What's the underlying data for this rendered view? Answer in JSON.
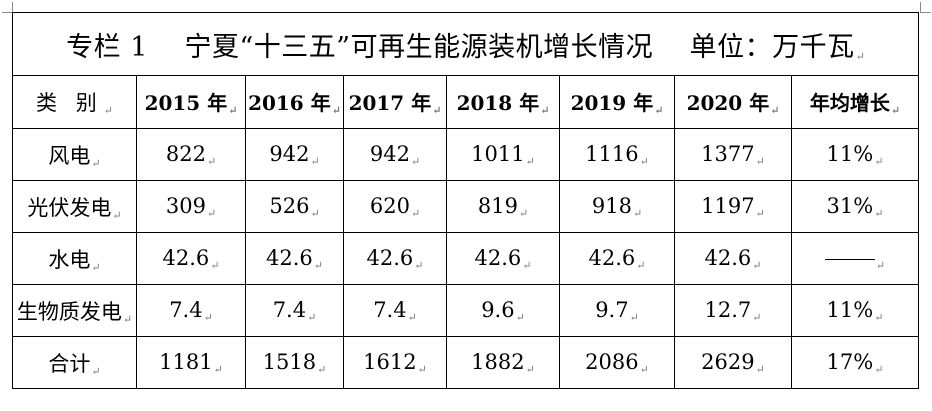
{
  "title": "专栏 1　 宁夏“十三五”可再生能源装机增长情况　 单位：万千瓦",
  "cell_mark": "↵",
  "headers": [
    "类 别",
    "2015 年",
    "2016 年",
    "2017 年",
    "2018 年",
    "2019 年",
    "2020 年",
    "年均增长"
  ],
  "rows": [
    {
      "category": "风电",
      "v2015": "822",
      "v2016": "942",
      "v2017": "942",
      "v2018": "1011",
      "v2019": "1116",
      "v2020": "1377",
      "growth": "11%"
    },
    {
      "category": "光伏发电",
      "v2015": "309",
      "v2016": "526",
      "v2017": "620",
      "v2018": "819",
      "v2019": "918",
      "v2020": "1197",
      "growth": "31%"
    },
    {
      "category": "水电",
      "v2015": "42.6",
      "v2016": "42.6",
      "v2017": "42.6",
      "v2018": "42.6",
      "v2019": "42.6",
      "v2020": "42.6",
      "growth": "——"
    },
    {
      "category": "生物质发电",
      "v2015": "7.4",
      "v2016": "7.4",
      "v2017": "7.4",
      "v2018": "9.6",
      "v2019": "9.7",
      "v2020": "12.7",
      "growth": "11%"
    },
    {
      "category": "合计",
      "v2015": "1181",
      "v2016": "1518",
      "v2017": "1612",
      "v2018": "1882",
      "v2019": "2086",
      "v2020": "2629",
      "growth": "17%"
    }
  ]
}
